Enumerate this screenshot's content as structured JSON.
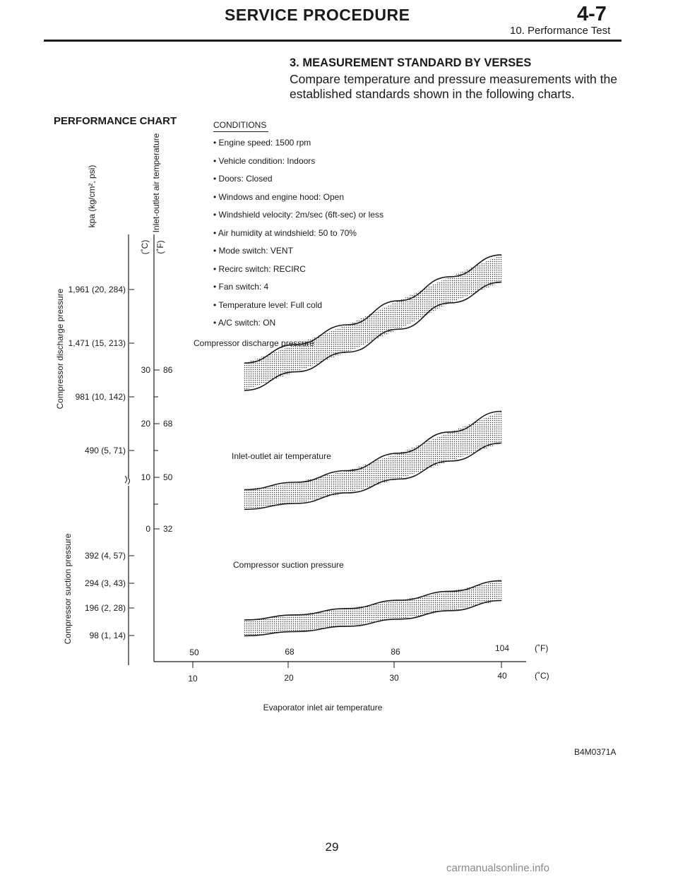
{
  "header": {
    "title": "SERVICE PROCEDURE",
    "section_number": "4-7",
    "subtitle": "10. Performance Test"
  },
  "section": {
    "heading": "3.  MEASUREMENT STANDARD BY VERSES",
    "body": "Compare temperature and pressure measurements with the established standards shown in the following charts."
  },
  "chart": {
    "title": "PERFORMANCE CHART",
    "conditions_heading": "CONDITIONS",
    "conditions": [
      "• Engine speed: 1500 rpm",
      "• Vehicle condition: Indoors",
      "• Doors: Closed",
      "• Windows and engine hood: Open",
      "• Windshield velocity: 2m/sec (6ft-sec) or less",
      "• Air humidity at windshield: 50 to 70%",
      "• Mode switch: VENT",
      "• Recirc switch: RECIRC",
      "• Fan switch: 4",
      "• Temperature level: Full cold",
      "• A/C switch: ON"
    ],
    "pressure_unit_label": "kpa (kg/cm², psi)",
    "discharge_axis_label": "Compressor discharge pressure",
    "suction_axis_label": "Compressor suction pressure",
    "temp_axis_label": "Inlet-outlet air temperature",
    "celsius_unit": "(˚C)",
    "fahrenheit_unit": "(˚F)",
    "discharge_ticks": [
      "1,961 (20, 284)",
      "1,471 (15, 213)",
      "981 (10, 142)",
      "490 (5, 71)"
    ],
    "suction_ticks": [
      "392 (4, 57)",
      "294 (3, 43)",
      "196 (2, 28)",
      "98 (1, 14)"
    ],
    "temp_c_ticks": [
      "30",
      "20",
      "10",
      "0"
    ],
    "temp_f_ticks": [
      "86",
      "68",
      "50",
      "32"
    ],
    "x_f_ticks": [
      "50",
      "68",
      "86",
      "104"
    ],
    "x_c_ticks": [
      "10",
      "20",
      "30",
      "40"
    ],
    "x_axis_label": "Evaporator inlet air temperature",
    "band_labels": {
      "discharge": "Compressor discharge pressure",
      "temperature": "Inlet-outlet air temperature",
      "suction": "Compressor suction pressure"
    },
    "figure_id": "B4M0371A"
  },
  "chart_data": {
    "type": "area",
    "title": "PERFORMANCE CHART",
    "xlabel": "Evaporator inlet air temperature",
    "x_unit_c": "(˚C)",
    "x_unit_f": "(˚F)",
    "x": [
      15,
      20,
      25,
      30,
      35,
      40
    ],
    "series": [
      {
        "name": "Compressor discharge pressure",
        "unit": "kpa",
        "lower": [
          1040,
          1210,
          1390,
          1600,
          1840,
          2030
        ],
        "upper": [
          1290,
          1460,
          1640,
          1860,
          2080,
          2280
        ]
      },
      {
        "name": "Inlet-outlet air temperature",
        "unit": "˚C",
        "lower": [
          3.7,
          4.8,
          6.8,
          9.4,
          12.8,
          16.2
        ],
        "upper": [
          7.4,
          8.8,
          11.0,
          14.3,
          18.3,
          22.2
        ]
      },
      {
        "name": "Compressor suction pressure",
        "unit": "kpa",
        "lower": [
          97,
          113,
          133,
          160,
          192,
          230
        ],
        "upper": [
          157,
          176,
          200,
          231,
          265,
          305
        ]
      }
    ]
  },
  "page": {
    "number": "29",
    "watermark": "carmanualsonline.info"
  }
}
